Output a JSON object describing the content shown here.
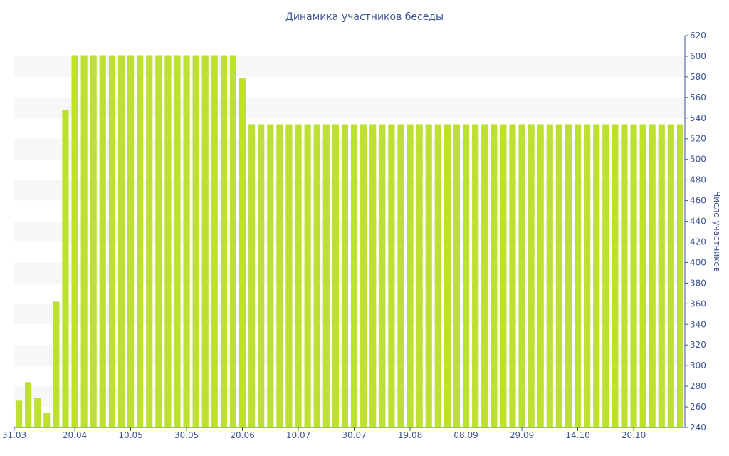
{
  "chart_data": {
    "type": "bar",
    "title": "Динамика участников беседы",
    "xlabel": "",
    "ylabel": "Число участников",
    "ylim": [
      240,
      620
    ],
    "y_ticks": [
      240,
      260,
      280,
      300,
      320,
      340,
      360,
      380,
      400,
      420,
      440,
      460,
      480,
      500,
      520,
      540,
      560,
      580,
      600,
      620
    ],
    "x_tick_labels": [
      "31.03",
      "20.04",
      "10.05",
      "30.05",
      "20.06",
      "10.07",
      "30.07",
      "19.08",
      "08.09",
      "29.09",
      "14.10",
      "20.10"
    ],
    "x_tick_positions": [
      0,
      6,
      12,
      18,
      24,
      30,
      36,
      42,
      48,
      54,
      60,
      66
    ],
    "y_axis_side": "right",
    "grid": "alternating horizontal bands",
    "bar_color": "#bde132",
    "band_color": "#f7f7f7",
    "text_color": "#3f5590",
    "values": [
      266,
      284,
      269,
      254,
      362,
      548,
      601,
      601,
      601,
      601,
      601,
      601,
      601,
      601,
      601,
      601,
      601,
      601,
      601,
      601,
      601,
      601,
      601,
      601,
      579,
      534,
      534,
      534,
      534,
      534,
      534,
      534,
      534,
      534,
      534,
      534,
      534,
      534,
      534,
      534,
      534,
      534,
      534,
      534,
      534,
      534,
      534,
      534,
      534,
      534,
      534,
      534,
      534,
      534,
      534,
      534,
      534,
      534,
      534,
      534,
      534,
      534,
      534,
      534,
      534,
      534,
      534,
      534,
      534,
      534,
      534,
      534
    ]
  }
}
